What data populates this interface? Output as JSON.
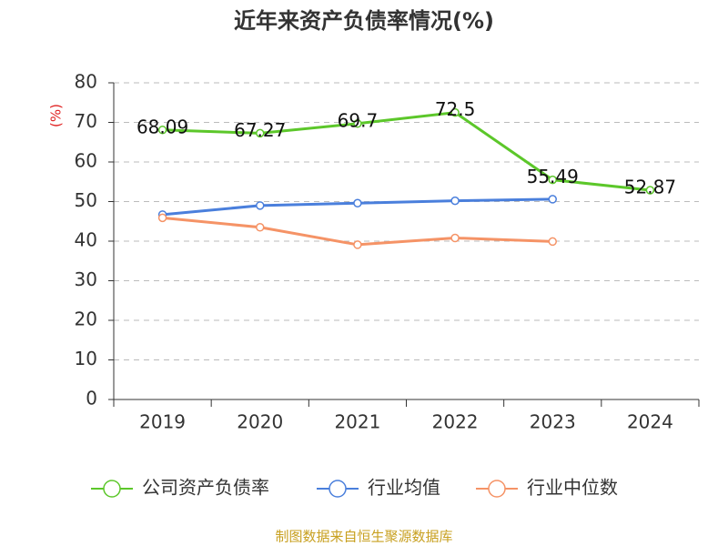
{
  "chart_data": {
    "type": "line",
    "title": "近年来资产负债率情况(%)",
    "y_label": "(%)",
    "source": "制图数据来自恒生聚源数据库",
    "categories": [
      "2019",
      "2020",
      "2021",
      "2022",
      "2023",
      "2024"
    ],
    "series": [
      {
        "name": "公司资产负债率",
        "color": "#5cc72a",
        "values": [
          68.09,
          67.27,
          69.7,
          72.5,
          55.49,
          52.87
        ],
        "show_labels": true
      },
      {
        "name": "行业均值",
        "color": "#4a7fdc",
        "values": [
          46.7,
          49.0,
          49.6,
          50.2,
          50.6,
          null
        ],
        "show_labels": false
      },
      {
        "name": "行业中位数",
        "color": "#f59366",
        "values": [
          45.9,
          43.5,
          39.1,
          40.8,
          39.9,
          null
        ],
        "show_labels": false
      }
    ],
    "ylim": [
      0,
      80
    ],
    "yticks": [
      0,
      10,
      20,
      30,
      40,
      50,
      60,
      70,
      80
    ],
    "grid": true
  }
}
